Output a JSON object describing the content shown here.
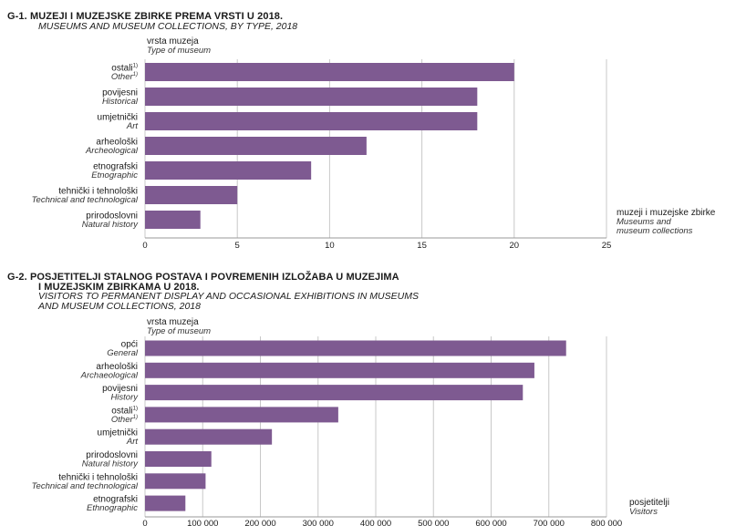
{
  "chart_data": [
    {
      "type": "bar",
      "orientation": "horizontal",
      "title": "G-1. MUZEJI I MUZEJSKE ZBIRKE PREMA VRSTI U 2018.",
      "subtitle": "MUSEUMS AND MUSEUM COLLECTIONS, BY TYPE, 2018",
      "category_axis_label": "vrsta muzeja",
      "category_axis_label_en": "Type of museum",
      "value_axis_label": "muzeji i muzejske zbirke",
      "value_axis_label_en_1": "Museums and",
      "value_axis_label_en_2": "museum collections",
      "categories": [
        {
          "hr": "ostali",
          "sup": "1)",
          "en": "Other",
          "en_sup": "1)"
        },
        {
          "hr": "povijesni",
          "sup": "",
          "en": "Historical",
          "en_sup": ""
        },
        {
          "hr": "umjetnički",
          "sup": "",
          "en": "Art",
          "en_sup": ""
        },
        {
          "hr": "arheološki",
          "sup": "",
          "en": "Archeological",
          "en_sup": ""
        },
        {
          "hr": "etnografski",
          "sup": "",
          "en": "Etnographic",
          "en_sup": ""
        },
        {
          "hr": "tehnički i tehnološki",
          "sup": "",
          "en": "Technical and technological",
          "en_sup": ""
        },
        {
          "hr": "prirodoslovni",
          "sup": "",
          "en": "Natural history",
          "en_sup": ""
        }
      ],
      "values": [
        20,
        18,
        18,
        12,
        9,
        5,
        3
      ],
      "xlim": [
        0,
        25
      ],
      "ticks": [
        0,
        5,
        10,
        15,
        20,
        25
      ],
      "tick_labels": [
        "0",
        "5",
        "10",
        "15",
        "20",
        "25"
      ],
      "grid": true,
      "bar_color": "#7e5a91"
    },
    {
      "type": "bar",
      "orientation": "horizontal",
      "title_line1": "G-2. POSJETITELJI STALNOG POSTAVA I POVREMENIH IZLOŽABA U MUZEJIMA",
      "title_line2": "I MUZEJSKIM ZBIRKAMA U 2018.",
      "subtitle_line1": "VISITORS TO PERMANENT DISPLAY AND OCCASIONAL EXHIBITIONS IN MUSEUMS",
      "subtitle_line2": "AND MUSEUM COLLECTIONS, 2018",
      "category_axis_label": "vrsta muzeja",
      "category_axis_label_en": "Type of museum",
      "value_axis_label": "posjetitelji",
      "value_axis_label_en": "Visitors",
      "categories": [
        {
          "hr": "opći",
          "sup": "",
          "en": "General",
          "en_sup": ""
        },
        {
          "hr": "arheološki",
          "sup": "",
          "en": "Archaeological",
          "en_sup": ""
        },
        {
          "hr": "povijesni",
          "sup": "",
          "en": "History",
          "en_sup": ""
        },
        {
          "hr": "ostali",
          "sup": "1)",
          "en": "Other",
          "en_sup": "1)"
        },
        {
          "hr": "umjetnički",
          "sup": "",
          "en": "Art",
          "en_sup": ""
        },
        {
          "hr": "prirodoslovni",
          "sup": "",
          "en": "Natural history",
          "en_sup": ""
        },
        {
          "hr": "tehnički i tehnološki",
          "sup": "",
          "en": "Technical and technological",
          "en_sup": ""
        },
        {
          "hr": "etnografski",
          "sup": "",
          "en": "Ethnographic",
          "en_sup": ""
        }
      ],
      "values": [
        730000,
        675000,
        655000,
        335000,
        220000,
        115000,
        105000,
        70000
      ],
      "xlim": [
        0,
        800000
      ],
      "ticks": [
        0,
        100000,
        200000,
        300000,
        400000,
        500000,
        600000,
        700000,
        800000
      ],
      "tick_labels": [
        "0",
        "100 000",
        "200 000",
        "300 000",
        "400 000",
        "500 000",
        "600 000",
        "700 000",
        "800 000"
      ],
      "grid": true,
      "bar_color": "#7e5a91"
    }
  ]
}
